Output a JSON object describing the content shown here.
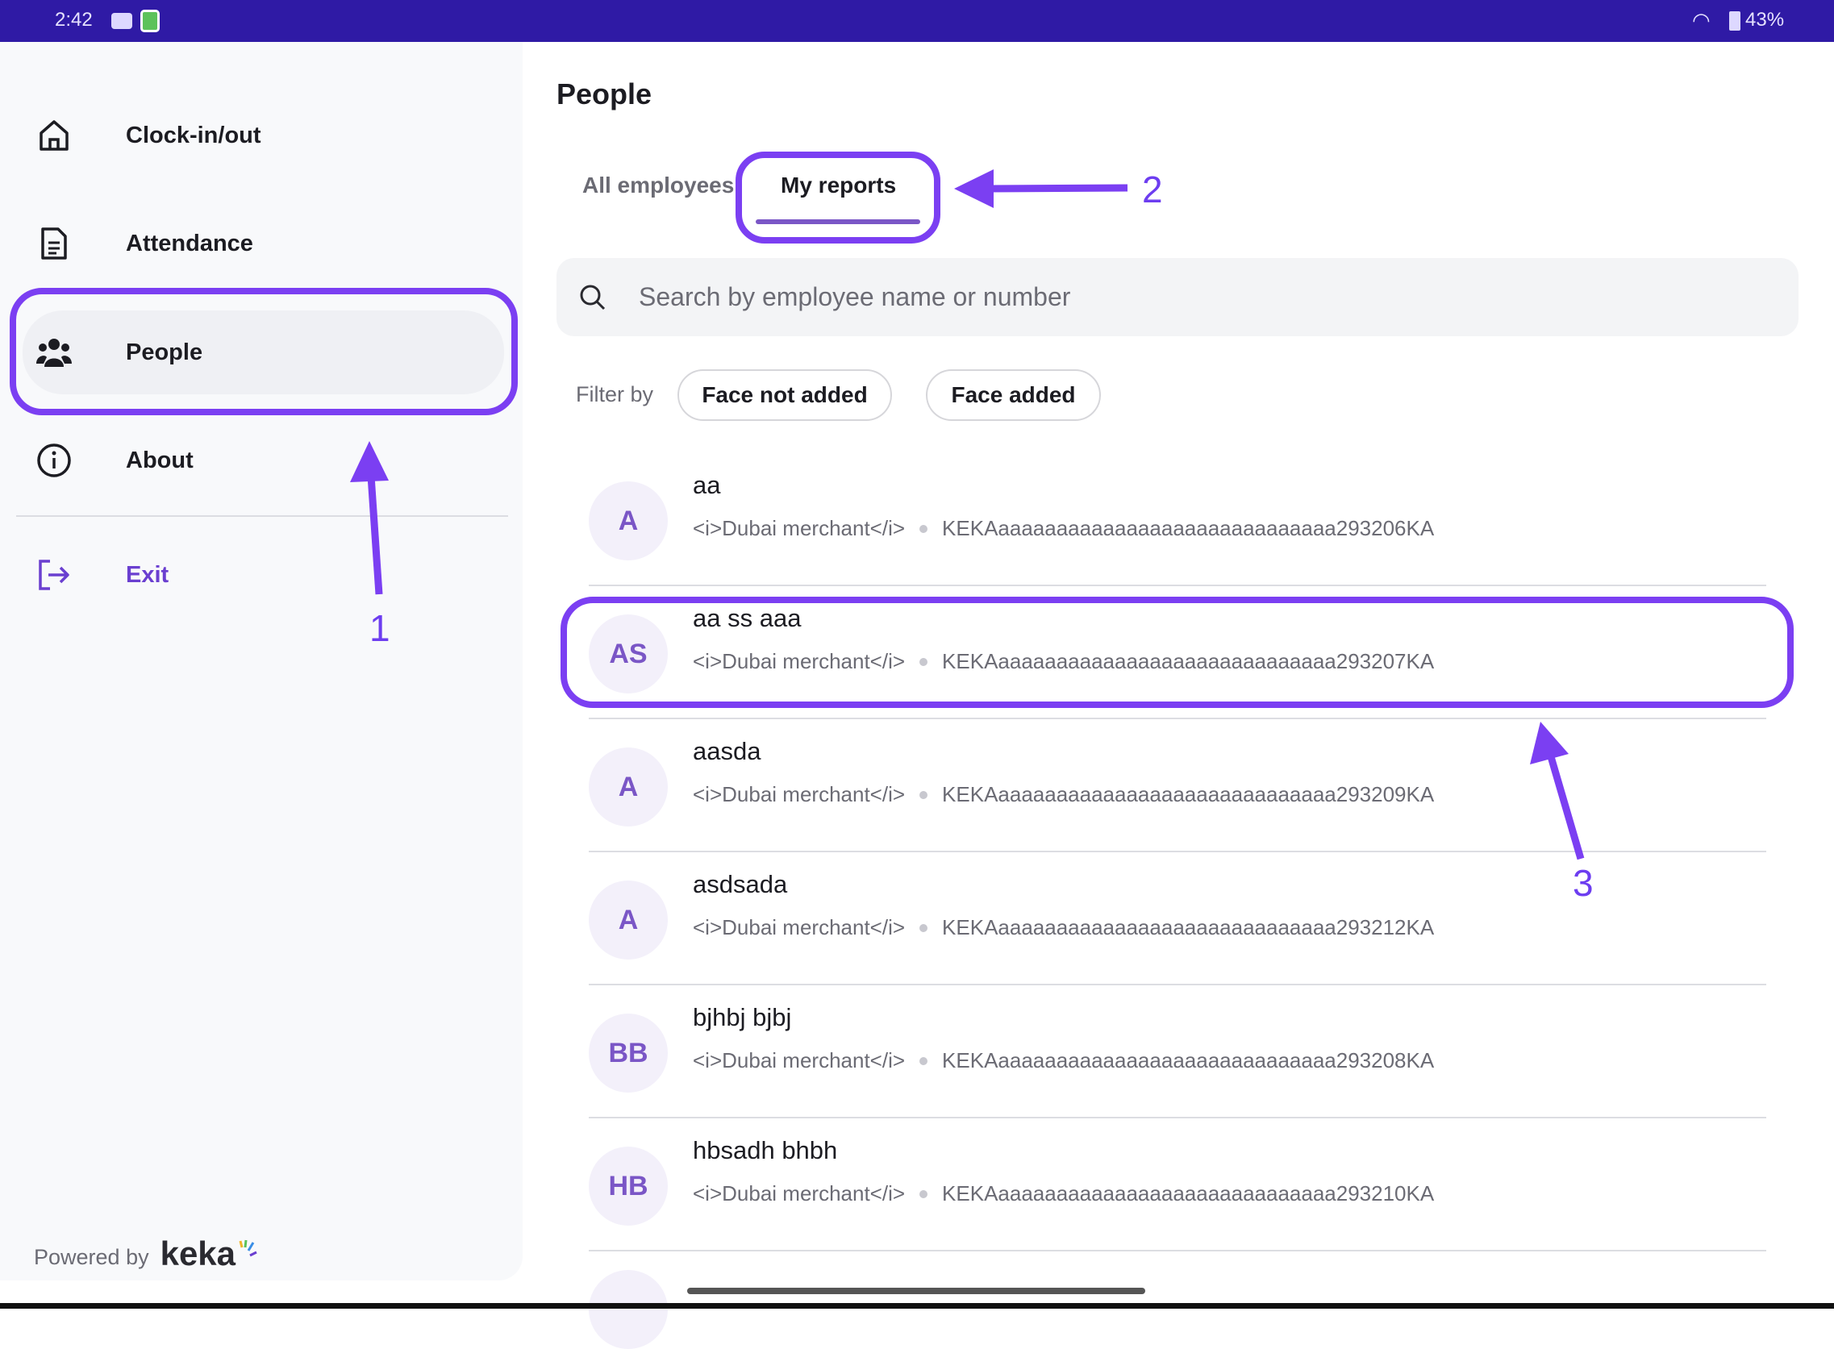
{
  "status_bar": {
    "time": "2:42",
    "battery": "43%",
    "icons": [
      "youtube-icon",
      "shield-icon",
      "wifi-icon",
      "battery-icon"
    ]
  },
  "sidebar": {
    "items": [
      {
        "label": "Clock-in/out",
        "icon": "home-icon"
      },
      {
        "label": "Attendance",
        "icon": "document-icon"
      },
      {
        "label": "People",
        "icon": "people-icon",
        "active": true
      },
      {
        "label": "About",
        "icon": "info-icon"
      }
    ],
    "exit": {
      "label": "Exit",
      "icon": "exit-icon"
    },
    "footer": {
      "powered_by": "Powered by",
      "brand": "keka"
    }
  },
  "main": {
    "title": "People",
    "tabs": [
      {
        "label": "All employees"
      },
      {
        "label": "My reports",
        "active": true
      }
    ],
    "search": {
      "placeholder": "Search by employee name or number"
    },
    "filter": {
      "label": "Filter by",
      "chips": [
        "Face not added",
        "Face added"
      ]
    },
    "employees": [
      {
        "initials": "A",
        "name": "aa",
        "designation": "<i>Dubai merchant</i>",
        "number": "KEKAaaaaaaaaaaaaaaaaaaaaaaaaaaaaa293206KA"
      },
      {
        "initials": "AS",
        "name": "aa ss aaa",
        "designation": "<i>Dubai merchant</i>",
        "number": "KEKAaaaaaaaaaaaaaaaaaaaaaaaaaaaaa293207KA"
      },
      {
        "initials": "A",
        "name": "aasda",
        "designation": "<i>Dubai merchant</i>",
        "number": "KEKAaaaaaaaaaaaaaaaaaaaaaaaaaaaaa293209KA"
      },
      {
        "initials": "A",
        "name": "asdsada",
        "designation": "<i>Dubai merchant</i>",
        "number": "KEKAaaaaaaaaaaaaaaaaaaaaaaaaaaaaa293212KA"
      },
      {
        "initials": "BB",
        "name": "bjhbj bjbj",
        "designation": "<i>Dubai merchant</i>",
        "number": "KEKAaaaaaaaaaaaaaaaaaaaaaaaaaaaaa293208KA"
      },
      {
        "initials": "HB",
        "name": "hbsadh bhbh",
        "designation": "<i>Dubai merchant</i>",
        "number": "KEKAaaaaaaaaaaaaaaaaaaaaaaaaaaaaa293210KA"
      }
    ]
  },
  "annotations": {
    "labels": [
      "1",
      "2",
      "3"
    ],
    "color": "#7b3ff2"
  },
  "colors": {
    "status_bar": "#2f1aa5",
    "accent": "#6a3fd0",
    "annotation": "#7b3ff2"
  }
}
